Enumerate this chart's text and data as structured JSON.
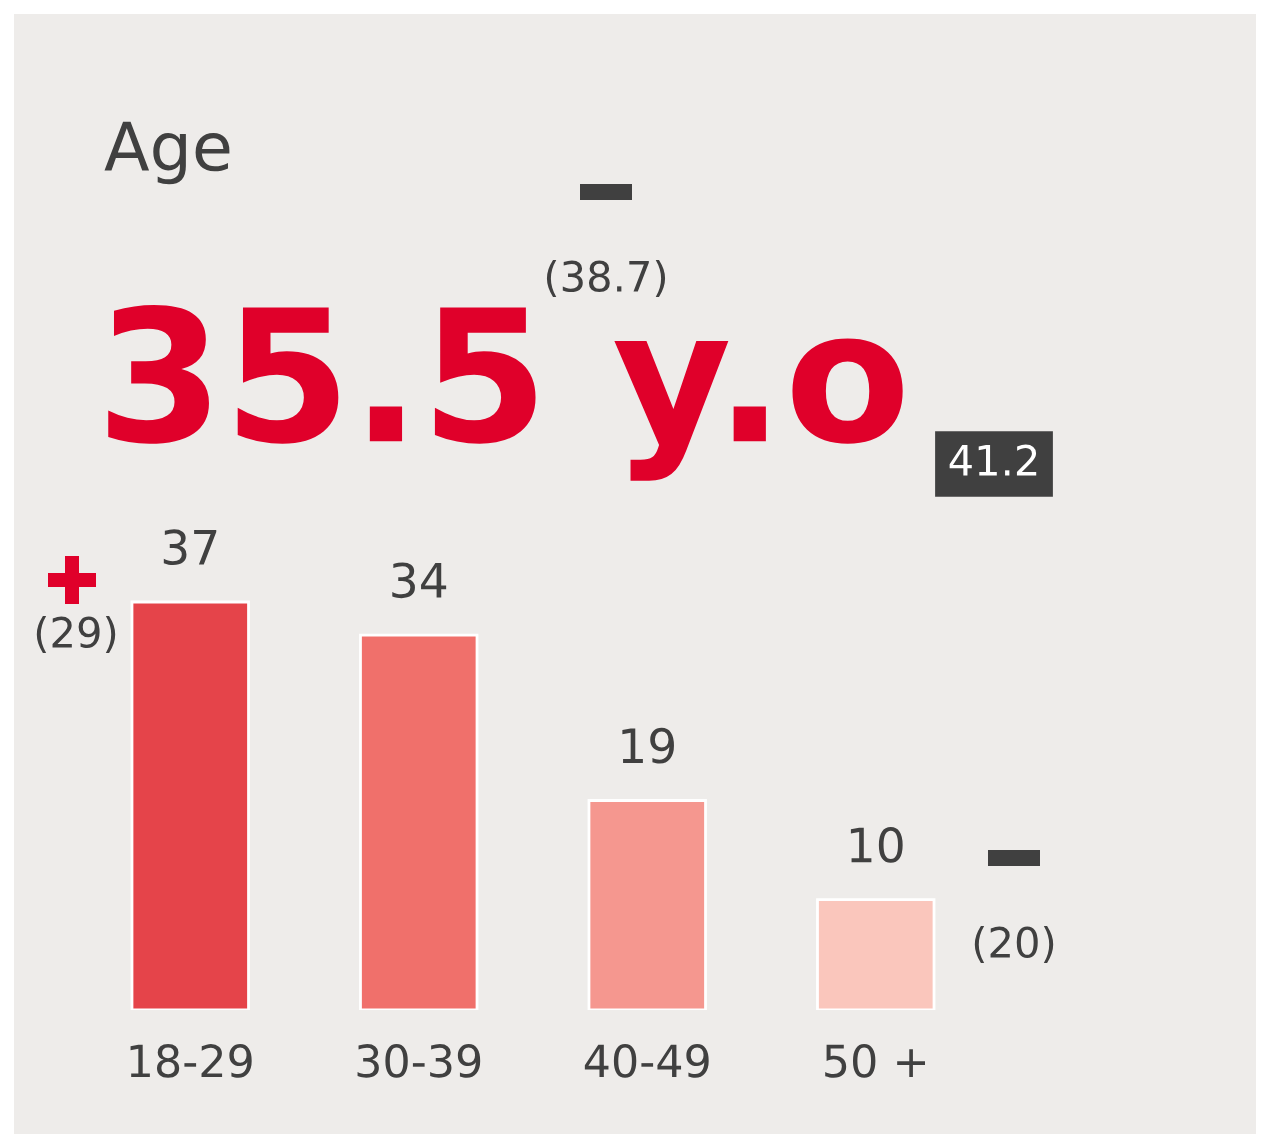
{
  "chart_data": {
    "type": "bar",
    "title": "Age",
    "subtitle": "35.5 y.o",
    "categories": [
      "18-29",
      "30-39",
      "40-49",
      "50 +"
    ],
    "values": [
      37,
      34,
      19,
      10
    ],
    "colors": [
      "#e5444a",
      "#f0706b",
      "#f5978f",
      "#fac6bc"
    ],
    "data_labels": true,
    "tick_labels": "x",
    "grid": false,
    "legend": false,
    "annotations": [
      "(38.7)",
      "41.2",
      "(29)",
      "(20)"
    ]
  }
}
